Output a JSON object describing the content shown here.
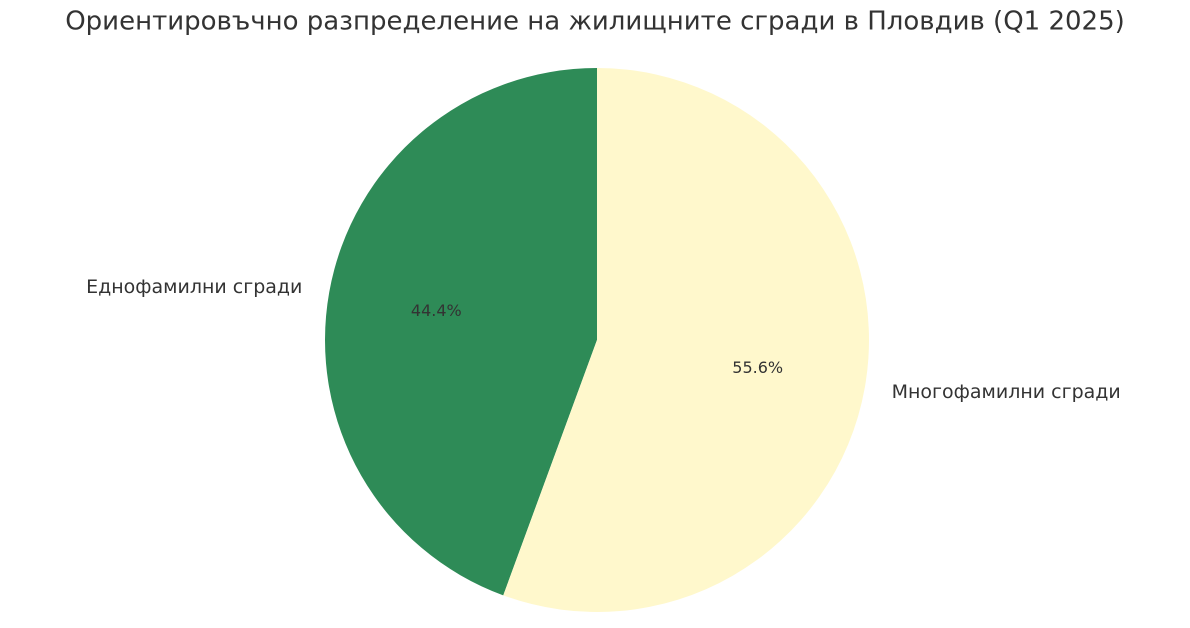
{
  "chart_data": {
    "type": "pie",
    "title": "Ориентировъчно разпределение на жилищните сгради в Пловдив (Q1 2025)",
    "categories": [
      "Еднофамилни сгради",
      "Многофамилни сгради"
    ],
    "values": [
      44.4,
      55.6
    ],
    "value_labels": [
      "44.4%",
      "55.6%"
    ],
    "colors": [
      "#2e8b57",
      "#fff8cc"
    ]
  }
}
